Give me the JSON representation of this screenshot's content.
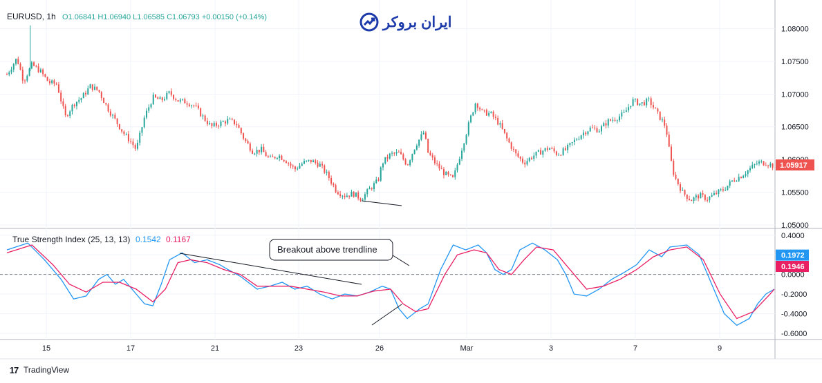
{
  "header": {
    "symbol_line": "EURUSD, 1h",
    "ohlc": "O1.06841 H1.06940 L1.06585 C1.06793 +0.00150 (+0.14%)",
    "watermark_text": "ایران بروکر",
    "watermark_icon": "chart-up-arrow-icon"
  },
  "footer": {
    "brand": "TradingView",
    "logo_icon": "tradingview-logo-icon"
  },
  "colors": {
    "up": "#26a69a",
    "down": "#ef5350",
    "tsi": "#2196f3",
    "signal": "#e91e63",
    "price_badge": "#ef5350",
    "tsi_badge": "#2196f3",
    "signal_badge": "#e91e63"
  },
  "annotation": {
    "text": "Breakout above trendline"
  },
  "chart_data": [
    {
      "type": "candlestick",
      "title": "EURUSD, 1h",
      "ylim": [
        1.05,
        1.081
      ],
      "y_ticks": [
        "1.08000",
        "1.07500",
        "1.07000",
        "1.06500",
        "1.06000",
        "1.05500",
        "1.05000"
      ],
      "last_price": "1.05917",
      "grid": true,
      "x_ticks": [
        "15",
        "17",
        "21",
        "23",
        "26",
        "Mar",
        "3",
        "7",
        "9"
      ],
      "close_path": [
        [
          0,
          1.073
        ],
        [
          12,
          1.0755
        ],
        [
          20,
          1.072
        ],
        [
          30,
          1.0745
        ],
        [
          40,
          1.0735
        ],
        [
          50,
          1.0718
        ],
        [
          60,
          1.0715
        ],
        [
          70,
          1.0665
        ],
        [
          80,
          1.0685
        ],
        [
          90,
          1.0695
        ],
        [
          100,
          1.0712
        ],
        [
          110,
          1.0705
        ],
        [
          120,
          1.068
        ],
        [
          130,
          1.066
        ],
        [
          140,
          1.064
        ],
        [
          150,
          1.0625
        ],
        [
          155,
          1.0615
        ],
        [
          165,
          1.0665
        ],
        [
          175,
          1.0695
        ],
        [
          185,
          1.069
        ],
        [
          195,
          1.0702
        ],
        [
          205,
          1.069
        ],
        [
          215,
          1.0688
        ],
        [
          225,
          1.0682
        ],
        [
          235,
          1.0665
        ],
        [
          245,
          1.065
        ],
        [
          255,
          1.0655
        ],
        [
          265,
          1.066
        ],
        [
          275,
          1.0655
        ],
        [
          285,
          1.063
        ],
        [
          295,
          1.0612
        ],
        [
          305,
          1.0615
        ],
        [
          315,
          1.06
        ],
        [
          325,
          1.0607
        ],
        [
          335,
          1.0598
        ],
        [
          345,
          1.0585
        ],
        [
          355,
          1.0595
        ],
        [
          365,
          1.0598
        ],
        [
          375,
          1.0592
        ],
        [
          385,
          1.0575
        ],
        [
          395,
          1.0552
        ],
        [
          405,
          1.0545
        ],
        [
          415,
          1.0548
        ],
        [
          425,
          1.054
        ],
        [
          435,
          1.0555
        ],
        [
          445,
          1.0568
        ],
        [
          450,
          1.0595
        ],
        [
          460,
          1.0608
        ],
        [
          470,
          1.061
        ],
        [
          480,
          1.0592
        ],
        [
          490,
          1.0622
        ],
        [
          500,
          1.0642
        ],
        [
          505,
          1.061
        ],
        [
          515,
          1.0592
        ],
        [
          525,
          1.0578
        ],
        [
          535,
          1.057
        ],
        [
          545,
          1.0615
        ],
        [
          555,
          1.066
        ],
        [
          562,
          1.0688
        ],
        [
          570,
          1.0672
        ],
        [
          580,
          1.067
        ],
        [
          590,
          1.0655
        ],
        [
          600,
          1.063
        ],
        [
          610,
          1.0608
        ],
        [
          620,
          1.0595
        ],
        [
          630,
          1.0605
        ],
        [
          640,
          1.0612
        ],
        [
          650,
          1.0618
        ],
        [
          660,
          1.0608
        ],
        [
          670,
          1.0615
        ],
        [
          680,
          1.0628
        ],
        [
          690,
          1.064
        ],
        [
          700,
          1.0648
        ],
        [
          710,
          1.0645
        ],
        [
          720,
          1.0658
        ],
        [
          730,
          1.0663
        ],
        [
          740,
          1.067
        ],
        [
          750,
          1.069
        ],
        [
          760,
          1.0685
        ],
        [
          770,
          1.069
        ],
        [
          780,
          1.067
        ],
        [
          790,
          1.065
        ],
        [
          795,
          1.0605
        ],
        [
          800,
          1.0575
        ],
        [
          810,
          1.055
        ],
        [
          820,
          1.0538
        ],
        [
          830,
          1.0545
        ],
        [
          840,
          1.054
        ],
        [
          850,
          1.0548
        ],
        [
          860,
          1.0555
        ],
        [
          870,
          1.0568
        ],
        [
          880,
          1.0575
        ],
        [
          890,
          1.0585
        ],
        [
          900,
          1.0595
        ],
        [
          910,
          1.0595
        ],
        [
          920,
          1.059
        ]
      ]
    },
    {
      "type": "line",
      "title": "True Strength Index (25, 13, 13)",
      "series": [
        {
          "name": "",
          "value_label": "0.1542",
          "badge": "0.1972",
          "points": [
            [
              0,
              0.25
            ],
            [
              25,
              0.32
            ],
            [
              45,
              0.15
            ],
            [
              65,
              -0.05
            ],
            [
              80,
              -0.25
            ],
            [
              95,
              -0.22
            ],
            [
              110,
              -0.05
            ],
            [
              120,
              0.0
            ],
            [
              130,
              -0.1
            ],
            [
              140,
              -0.05
            ],
            [
              150,
              -0.15
            ],
            [
              165,
              -0.3
            ],
            [
              175,
              -0.32
            ],
            [
              185,
              -0.1
            ],
            [
              195,
              0.15
            ],
            [
              210,
              0.22
            ],
            [
              225,
              0.12
            ],
            [
              240,
              0.15
            ],
            [
              255,
              0.1
            ],
            [
              265,
              0.05
            ],
            [
              280,
              -0.02
            ],
            [
              300,
              -0.15
            ],
            [
              315,
              -0.12
            ],
            [
              330,
              -0.08
            ],
            [
              345,
              -0.15
            ],
            [
              360,
              -0.12
            ],
            [
              375,
              -0.2
            ],
            [
              390,
              -0.25
            ],
            [
              405,
              -0.2
            ],
            [
              420,
              -0.22
            ],
            [
              435,
              -0.18
            ],
            [
              450,
              -0.12
            ],
            [
              460,
              -0.15
            ],
            [
              470,
              -0.35
            ],
            [
              480,
              -0.45
            ],
            [
              495,
              -0.35
            ],
            [
              505,
              -0.3
            ],
            [
              520,
              0.05
            ],
            [
              535,
              0.3
            ],
            [
              550,
              0.25
            ],
            [
              565,
              0.3
            ],
            [
              575,
              0.22
            ],
            [
              585,
              0.05
            ],
            [
              595,
              0.0
            ],
            [
              605,
              0.05
            ],
            [
              615,
              0.25
            ],
            [
              630,
              0.32
            ],
            [
              645,
              0.25
            ],
            [
              660,
              0.15
            ],
            [
              670,
              0.0
            ],
            [
              680,
              -0.2
            ],
            [
              695,
              -0.22
            ],
            [
              710,
              -0.15
            ],
            [
              725,
              -0.05
            ],
            [
              740,
              0.02
            ],
            [
              755,
              0.1
            ],
            [
              770,
              0.25
            ],
            [
              785,
              0.18
            ],
            [
              795,
              0.28
            ],
            [
              815,
              0.3
            ],
            [
              830,
              0.2
            ],
            [
              845,
              -0.1
            ],
            [
              860,
              -0.4
            ],
            [
              875,
              -0.52
            ],
            [
              890,
              -0.45
            ],
            [
              900,
              -0.3
            ],
            [
              910,
              -0.2
            ],
            [
              920,
              -0.15
            ]
          ]
        },
        {
          "name": "",
          "value_label": "0.1167",
          "badge": "0.1946",
          "points": [
            [
              0,
              0.22
            ],
            [
              30,
              0.3
            ],
            [
              55,
              0.1
            ],
            [
              75,
              -0.1
            ],
            [
              95,
              -0.18
            ],
            [
              115,
              -0.08
            ],
            [
              135,
              -0.08
            ],
            [
              155,
              -0.15
            ],
            [
              175,
              -0.28
            ],
            [
              190,
              -0.15
            ],
            [
              205,
              0.12
            ],
            [
              220,
              0.15
            ],
            [
              240,
              0.12
            ],
            [
              260,
              0.05
            ],
            [
              280,
              0.0
            ],
            [
              300,
              -0.12
            ],
            [
              320,
              -0.12
            ],
            [
              340,
              -0.12
            ],
            [
              360,
              -0.15
            ],
            [
              380,
              -0.18
            ],
            [
              400,
              -0.22
            ],
            [
              420,
              -0.22
            ],
            [
              440,
              -0.17
            ],
            [
              460,
              -0.15
            ],
            [
              475,
              -0.3
            ],
            [
              490,
              -0.38
            ],
            [
              505,
              -0.35
            ],
            [
              525,
              0.0
            ],
            [
              540,
              0.2
            ],
            [
              560,
              0.25
            ],
            [
              575,
              0.22
            ],
            [
              590,
              0.05
            ],
            [
              605,
              0.0
            ],
            [
              620,
              0.15
            ],
            [
              635,
              0.28
            ],
            [
              655,
              0.25
            ],
            [
              675,
              0.05
            ],
            [
              695,
              -0.15
            ],
            [
              715,
              -0.12
            ],
            [
              735,
              -0.05
            ],
            [
              755,
              0.05
            ],
            [
              775,
              0.18
            ],
            [
              795,
              0.25
            ],
            [
              815,
              0.28
            ],
            [
              835,
              0.15
            ],
            [
              855,
              -0.2
            ],
            [
              875,
              -0.45
            ],
            [
              895,
              -0.38
            ],
            [
              915,
              -0.2
            ],
            [
              920,
              -0.15
            ]
          ]
        }
      ],
      "ylim": [
        -0.65,
        0.42
      ],
      "y_ticks": [
        "0.4000",
        "0.2000",
        "0.0000",
        "-0.2000",
        "-0.4000",
        "-0.6000"
      ]
    }
  ]
}
